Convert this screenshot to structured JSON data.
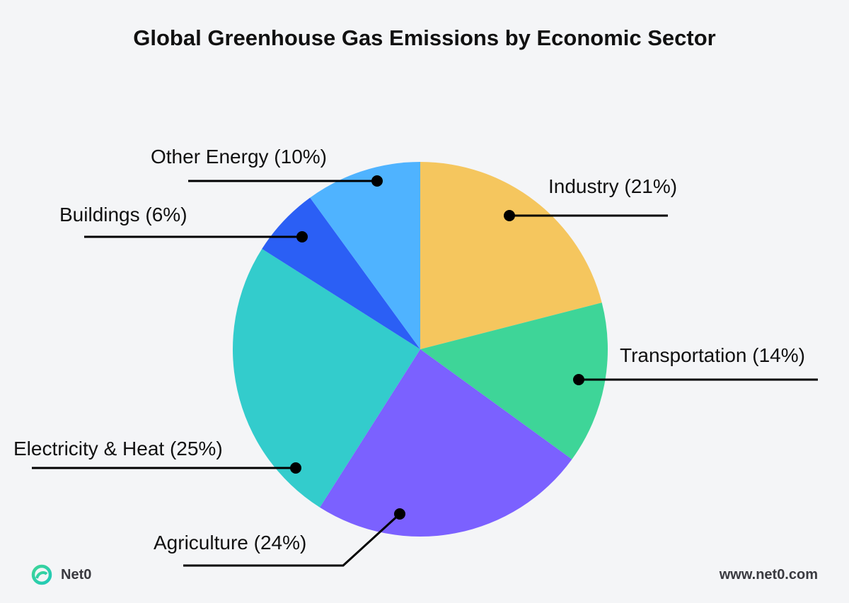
{
  "chart_data": {
    "type": "pie",
    "title": "Global Greenhouse Gas Emissions by Economic Sector",
    "start_angle_deg": 0,
    "direction": "clockwise",
    "slices": [
      {
        "label": "Industry (21%)",
        "name": "Industry",
        "value": 21,
        "color": "#F5C65E"
      },
      {
        "label": "Transportation (14%)",
        "name": "Transportation",
        "value": 14,
        "color": "#3ED598"
      },
      {
        "label": "Agriculture (24%)",
        "name": "Agriculture",
        "value": 24,
        "color": "#7B61FF"
      },
      {
        "label": "Electricity & Heat (25%)",
        "name": "Electricity & Heat",
        "value": 25,
        "color": "#33CCCC"
      },
      {
        "label": "Buildings (6%)",
        "name": "Buildings",
        "value": 6,
        "color": "#2B5FF5"
      },
      {
        "label": "Other Energy (10%)",
        "name": "Other Energy",
        "value": 10,
        "color": "#4FB3FF"
      }
    ]
  },
  "footer": {
    "brand": "Net0",
    "website": "www.net0.com",
    "logo_icon": "net0-leaf-logo"
  }
}
